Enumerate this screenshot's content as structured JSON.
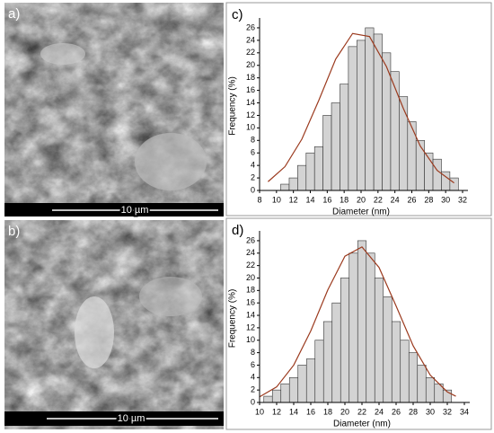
{
  "images": [
    {
      "label": "a)",
      "scale_bar": "10 µm"
    },
    {
      "label": "b)",
      "scale_bar": "10 µm"
    }
  ],
  "chart_data": [
    {
      "type": "histogram",
      "title": "c)",
      "x_label": "Diameter (nm)",
      "y_label": "Frequency (%)",
      "bins": [
        10.5,
        11.5,
        12.5,
        13.5,
        14.5,
        15.5,
        16.5,
        17.5,
        18.5,
        19.5,
        20.5,
        21.5,
        22.5,
        23.5,
        24.5,
        25.5,
        26.5,
        27.5,
        28.5,
        29.5,
        30.5,
        31.5
      ],
      "values": [
        1,
        2,
        4,
        6,
        7,
        12,
        14,
        17,
        23,
        24,
        26,
        25,
        22,
        19,
        15,
        11,
        8,
        6,
        5,
        3,
        2
      ],
      "color": "#d3d3d3",
      "fit": {
        "x": [
          9,
          11,
          13,
          15,
          17,
          19,
          21,
          23,
          25,
          27,
          29,
          31
        ],
        "values": [
          1.4,
          3.8,
          8.2,
          14.4,
          21,
          25.1,
          24.6,
          19.8,
          13.1,
          7.1,
          3.2,
          1.2
        ],
        "color": "#9b3a1e"
      },
      "xlim": [
        8,
        32
      ],
      "xticks": [
        8,
        10,
        12,
        14,
        16,
        18,
        20,
        22,
        24,
        26,
        28,
        30,
        32
      ],
      "ylim": [
        0,
        27
      ],
      "yticks": [
        0,
        2,
        4,
        6,
        8,
        10,
        12,
        14,
        16,
        18,
        20,
        22,
        24,
        26
      ]
    },
    {
      "type": "histogram",
      "title": "d)",
      "x_label": "Diameter (nm)",
      "y_label": "Frequency (%)",
      "bins": [
        10.5,
        11.5,
        12.5,
        13.5,
        14.5,
        15.5,
        16.5,
        17.5,
        18.5,
        19.5,
        20.5,
        21.5,
        22.5,
        23.5,
        24.5,
        25.5,
        26.5,
        27.5,
        28.5,
        29.5,
        30.5,
        31.5,
        32.5
      ],
      "values": [
        1,
        2,
        3,
        4,
        6,
        7,
        10,
        13,
        16,
        20,
        24,
        26,
        24,
        20,
        17,
        13,
        10,
        8,
        6,
        4,
        3,
        2
      ],
      "color": "#d3d3d3",
      "fit": {
        "x": [
          10,
          12,
          14,
          16,
          18,
          20,
          22,
          24,
          26,
          28,
          30,
          32,
          33
        ],
        "values": [
          0.9,
          2.5,
          6,
          11.5,
          18.1,
          23.5,
          25,
          21.7,
          15.5,
          9.1,
          4.4,
          1.7,
          1
        ],
        "color": "#9b3a1e"
      },
      "xlim": [
        10,
        34
      ],
      "xticks": [
        10,
        12,
        14,
        16,
        18,
        20,
        22,
        24,
        26,
        28,
        30,
        32,
        34
      ],
      "ylim": [
        0,
        27
      ],
      "yticks": [
        0,
        2,
        4,
        6,
        8,
        10,
        12,
        14,
        16,
        18,
        20,
        22,
        24,
        26
      ]
    }
  ]
}
